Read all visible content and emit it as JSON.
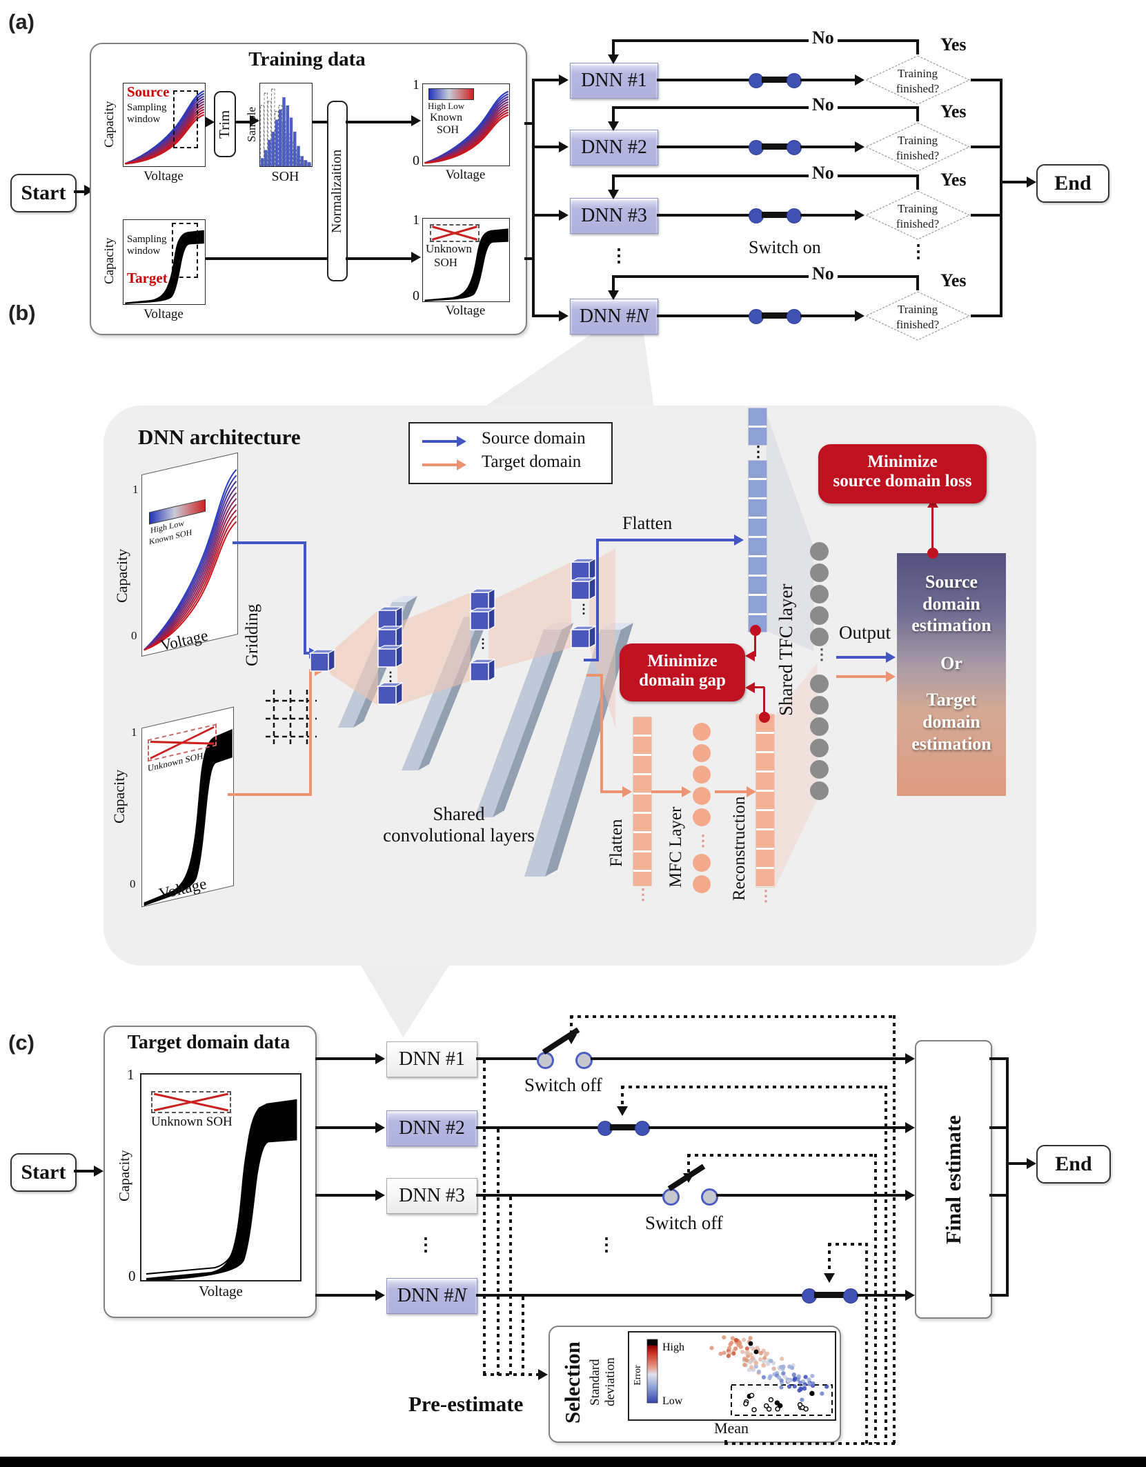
{
  "colors": {
    "purple_box": "#b5b9e0",
    "switch_blue": "#4051b4",
    "red_box": "#bf1120",
    "source_blue": "#4455c4",
    "target_orange": "#ec9472",
    "blue_cell": "#8fa0d6",
    "orange_cell": "#f4b198",
    "gray_circle": "#8b8b8b",
    "panel_bg": "#f0eff0"
  },
  "panel_a": {
    "label": "(a)",
    "start": "Start",
    "end": "End",
    "box_title": "Training data",
    "source_plot": {
      "title": "Source",
      "window1": "Sampling",
      "window2": "window",
      "xlabel": "Voltage",
      "ylabel": "Capacity"
    },
    "trim": "Trim",
    "hist": {
      "ylabel": "Sample",
      "xlabel": "SOH"
    },
    "normalization": "Normalizaition",
    "norm_source": {
      "tick1": "1",
      "tick0": "0",
      "cbar": "High Low",
      "known1": "Known",
      "known2": "SOH",
      "xlabel": "Voltage"
    },
    "target_plot": {
      "title": "Target",
      "window1": "Sampling",
      "window2": "window",
      "xlabel": "Voltage",
      "ylabel": "Capacity"
    },
    "norm_target": {
      "tick1": "1",
      "tick0": "0",
      "unknown1": "Unknown",
      "unknown2": "SOH",
      "xlabel": "Voltage"
    },
    "dnn": {
      "n1": "DNN #1",
      "n2": "DNN #2",
      "n3": "DNN #3",
      "prefix": "DNN #",
      "n_italic": "N"
    },
    "no": "No",
    "yes": "Yes",
    "decision1": "Training",
    "decision2": "finished?",
    "switch_on": "Switch on",
    "ellipsis": "⋮"
  },
  "panel_b": {
    "label": "(b)",
    "title": "DNN architecture",
    "legend": {
      "source": "Source domain",
      "target": "Target domain"
    },
    "source_plot": {
      "tick1": "1",
      "tick0": "0",
      "cbar": "High  Low",
      "known": "Known SOH",
      "ylabel": "Capacity",
      "xlabel": "Voltage"
    },
    "target_plot": {
      "tick1": "1",
      "tick0": "0",
      "unknown": "Unknown SOH",
      "ylabel": "Capacity",
      "xlabel": "Voltage"
    },
    "gridding": "Gridding",
    "conv1": "Shared",
    "conv2": "convolutional layers",
    "flatten_top": "Flatten",
    "flatten_side": "Flatten",
    "mfc": "MFC Layer",
    "recon": "Reconstruction",
    "tfc": "Shared TFC layer",
    "output": "Output",
    "gap1": "Minimize",
    "gap2": "domain gap",
    "loss1": "Minimize",
    "loss2": "source domain loss",
    "est": {
      "source": "Source domain estimation",
      "or": "Or",
      "target": "Target domain estimation"
    },
    "ellipsis": "⋮"
  },
  "panel_c": {
    "label": "(c)",
    "start": "Start",
    "end": "End",
    "box_title": "Target domain data",
    "plot": {
      "tick1": "1",
      "tick0": "0",
      "unknown": "Unknown SOH",
      "ylabel": "Capacity",
      "xlabel": "Voltage"
    },
    "dnn": {
      "n1": "DNN #1",
      "n2": "DNN #2",
      "n3": "DNN #3",
      "prefix": "DNN #",
      "n_italic": "N"
    },
    "switch_off": "Switch off",
    "final": "Final estimate",
    "pre": "Pre-estimate",
    "ellipsis": "⋮",
    "selection": {
      "title": "Selection",
      "ylabel1": "Standard",
      "ylabel2": "deviation",
      "xlabel": "Mean",
      "error": "Error",
      "high": "High",
      "low": "Low"
    }
  },
  "decor": {
    "hist_solid": [
      4,
      8,
      13,
      17,
      23,
      28,
      34,
      30,
      24,
      17,
      10,
      5,
      3,
      2
    ],
    "hist_dashed": [
      30,
      36,
      32,
      38,
      27,
      30,
      22,
      16,
      12,
      8,
      5,
      3,
      2,
      1
    ]
  }
}
